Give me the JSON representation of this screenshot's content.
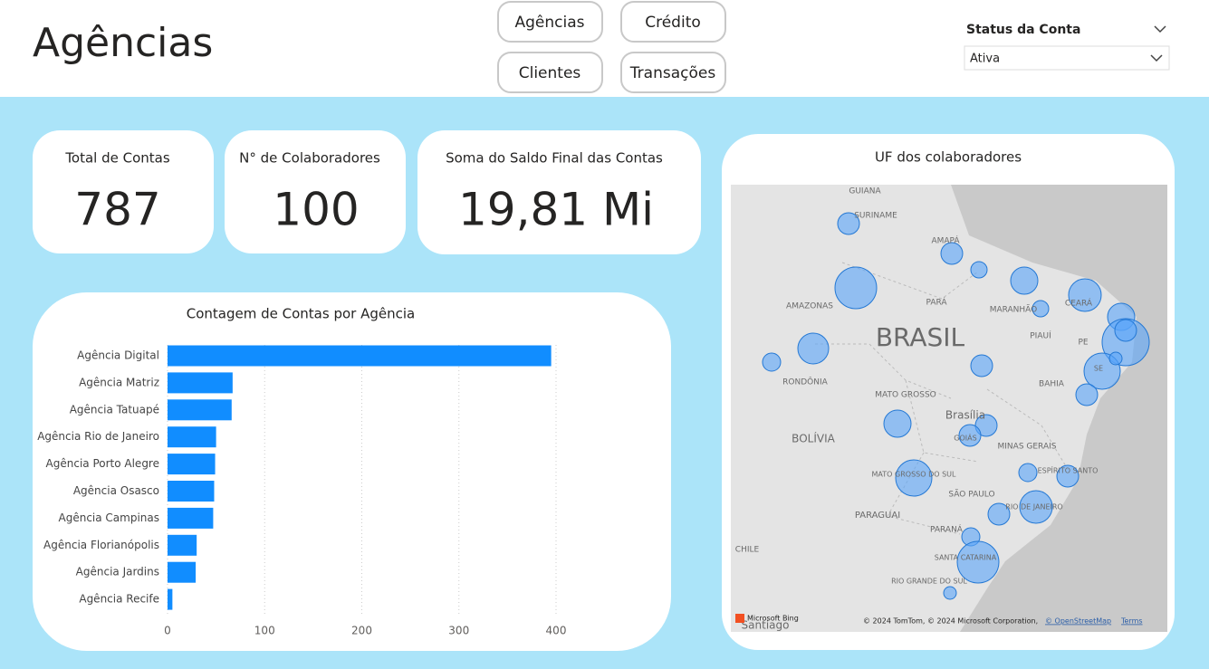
{
  "header": {
    "title": "Agências"
  },
  "nav": [
    "Agências",
    "Crédito",
    "Clientes",
    "Transações"
  ],
  "filter": {
    "label": "Status da Conta",
    "value": "Ativa"
  },
  "cards": [
    {
      "label": "Total de Contas",
      "value": "787"
    },
    {
      "label": "N° de Colaboradores",
      "value": "100"
    },
    {
      "label": "Soma do Saldo Final das Contas",
      "value": "19,81 Mi"
    }
  ],
  "map": {
    "title": "UF dos colaboradores",
    "labels": [
      "GUIANA",
      "SURINAME",
      "AMAPÁ",
      "AMAZONAS",
      "PARÁ",
      "MARANHÃO",
      "CEARÁ",
      "PIAUÍ",
      "PE",
      "BRASIL",
      "RONDÔNIA",
      "MATO GROSSO",
      "BAHIA",
      "Brasília",
      "GOIÁS",
      "BOLÍVIA",
      "MINAS GERAIS",
      "ESPÍRITO SANTO",
      "MATO GROSSO DO SUL",
      "SÃO PAULO",
      "RIO DE JANEIRO",
      "PARAGUAI",
      "PARANÁ",
      "SANTA CATARINA",
      "CHILE",
      "RIO GRANDE DO SUL",
      "Santiago",
      "SE"
    ],
    "attribution": {
      "brand": "Microsoft Bing",
      "copyright": "© 2024 TomTom, © 2024 Microsoft Corporation,",
      "osm": "© OpenStreetMap",
      "terms": "Terms"
    }
  },
  "chart_data": {
    "type": "hbar",
    "title": "Contagem de Contas por Agência",
    "categories": [
      "Agência Digital",
      "Agência Matriz",
      "Agência Tatuapé",
      "Agência Rio de Janeiro",
      "Agência Porto Alegre",
      "Agência Osasco",
      "Agência Campinas",
      "Agência Florianópolis",
      "Agência Jardins",
      "Agência Recife"
    ],
    "values": [
      395,
      67,
      66,
      50,
      49,
      48,
      47,
      30,
      29,
      5
    ],
    "color": "#118dff",
    "xlim": [
      0,
      400
    ],
    "xticks": [
      0,
      100,
      200,
      300,
      400
    ],
    "grid": true
  }
}
